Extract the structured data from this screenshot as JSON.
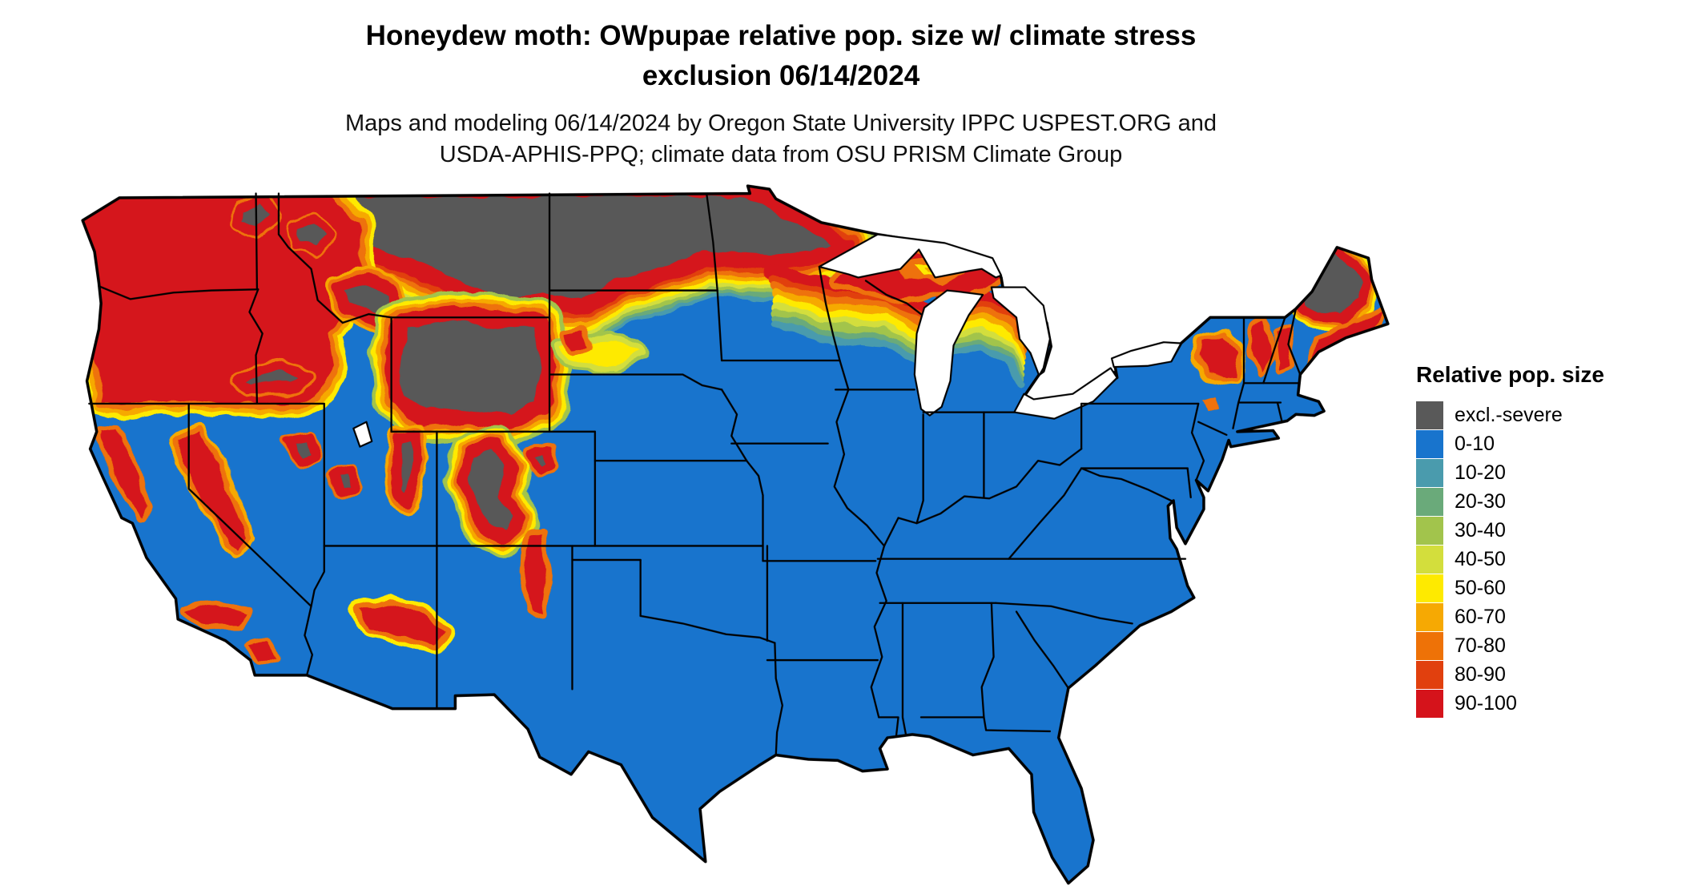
{
  "header": {
    "title_line1": "Honeydew moth: OWpupae relative pop. size w/ climate stress",
    "title_line2": "exclusion 06/14/2024",
    "subtitle_line1": "Maps and modeling 06/14/2024 by Oregon State University IPPC USPEST.ORG and",
    "subtitle_line2": "USDA-APHIS-PPQ; climate data from OSU PRISM Climate Group"
  },
  "legend": {
    "title": "Relative pop. size",
    "items": [
      {
        "label": "excl.-severe",
        "color": "#595959"
      },
      {
        "label": "0-10",
        "color": "#1874cd"
      },
      {
        "label": "10-20",
        "color": "#4a9bad"
      },
      {
        "label": "20-30",
        "color": "#6aaa7a"
      },
      {
        "label": "30-40",
        "color": "#a2c44c"
      },
      {
        "label": "40-50",
        "color": "#d3de3c"
      },
      {
        "label": "50-60",
        "color": "#feea00"
      },
      {
        "label": "60-70",
        "color": "#f6a903"
      },
      {
        "label": "70-80",
        "color": "#ee7207"
      },
      {
        "label": "80-90",
        "color": "#e1400e"
      },
      {
        "label": "90-100",
        "color": "#d5131b"
      }
    ]
  },
  "map": {
    "water_color": "#ffffff",
    "border_color": "#000000"
  }
}
